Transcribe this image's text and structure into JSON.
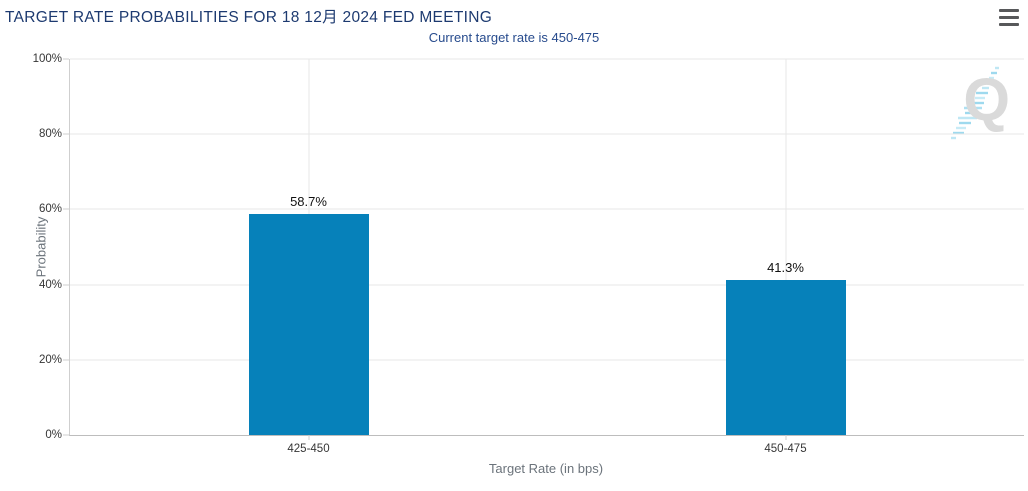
{
  "header": {
    "title": "TARGET RATE PROBABILITIES FOR 18 12月 2024 FED MEETING"
  },
  "icons": {
    "menu": "hamburger-menu-icon",
    "watermark": "quandl-q-watermark"
  },
  "watermark": {
    "letter": "Q"
  },
  "colors": {
    "bar": "#0681ba",
    "title": "#1d3a70",
    "subtitle": "#274b8d",
    "grid": "#e7e7e7",
    "axis_left": "#cfcfcf",
    "axis_bottom": "#bdbdbd",
    "axis_title": "#6b737b",
    "tick_label": "#363636",
    "watermark_q": "#dadada",
    "menu": "#57585a"
  },
  "chart_data": {
    "type": "bar",
    "title": "TARGET RATE PROBABILITIES FOR 18 12月 2024 FED MEETING",
    "subtitle": "Current target rate is 450-475",
    "categories": [
      "425-450",
      "450-475"
    ],
    "values": [
      58.7,
      41.3
    ],
    "data_labels": [
      "58.7%",
      "41.3%"
    ],
    "xlabel": "Target Rate (in bps)",
    "ylabel": "Probability",
    "ylim": [
      0,
      100
    ],
    "yticks": [
      0,
      20,
      40,
      60,
      80,
      100
    ],
    "ytick_labels": [
      "0%",
      "20%",
      "40%",
      "60%",
      "80%",
      "100%"
    ],
    "grid": true,
    "legend": "none"
  }
}
